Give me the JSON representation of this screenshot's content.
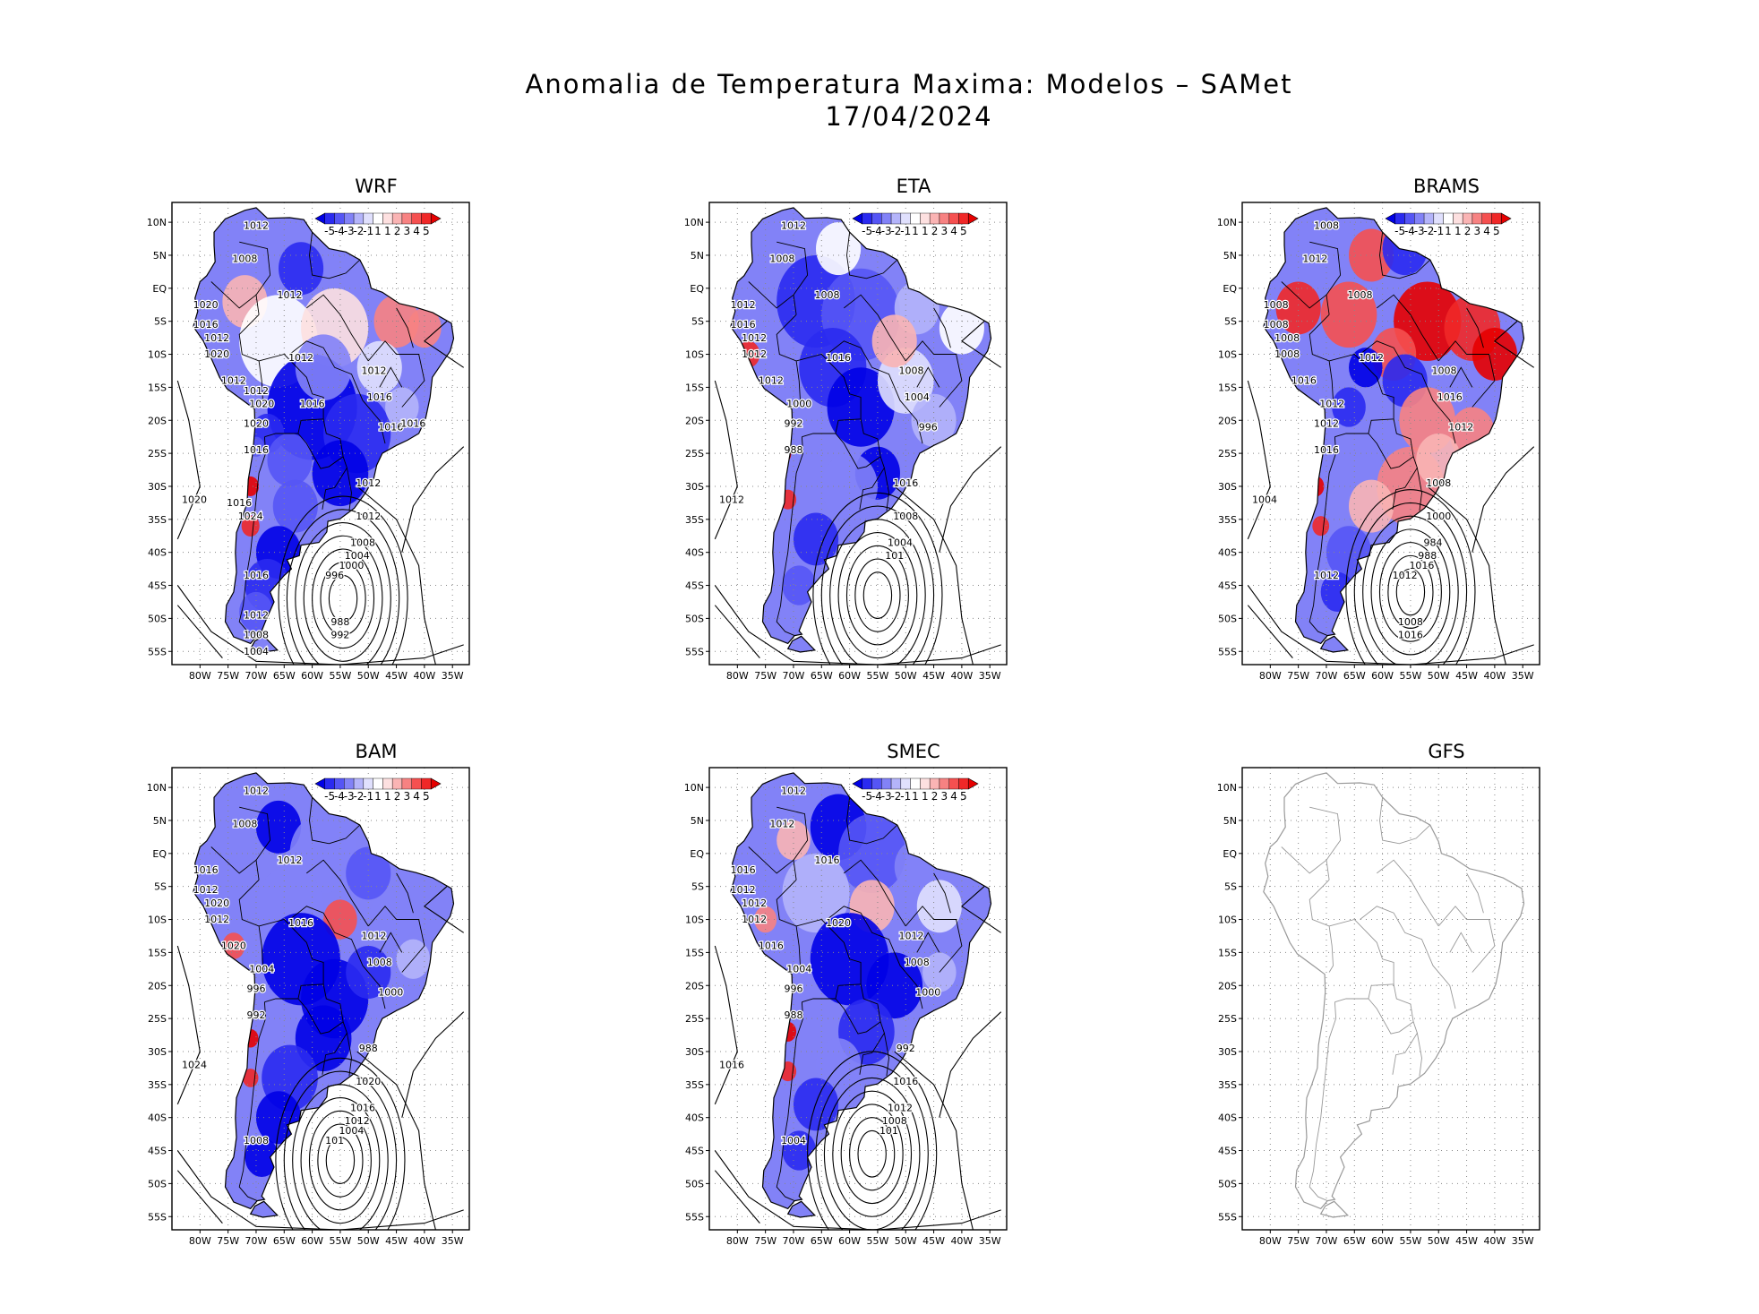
{
  "figure": {
    "title_line1": "Anomalia de Temperatura Maxima: Modelos – SAMet",
    "title_line2": "17/04/2024"
  },
  "axes": {
    "lat_labels": [
      "10N",
      "5N",
      "EQ",
      "5S",
      "10S",
      "15S",
      "20S",
      "25S",
      "30S",
      "35S",
      "40S",
      "45S",
      "50S",
      "55S"
    ],
    "lon_labels": [
      "80W",
      "75W",
      "70W",
      "65W",
      "60W",
      "55W",
      "50W",
      "45W",
      "40W",
      "35W"
    ]
  },
  "colorbar": {
    "labels": [
      "-5",
      "-4",
      "-3",
      "-2",
      "-1",
      "1",
      "1",
      "2",
      "3",
      "4",
      "5"
    ],
    "colors": [
      "#0000e6",
      "#2a2af0",
      "#5555f5",
      "#8282f7",
      "#b4b4fa",
      "#e0e0fd",
      "#ffffff",
      "#fde0e0",
      "#fab4b4",
      "#f78282",
      "#f55050",
      "#f02828",
      "#e60000"
    ]
  },
  "panels": [
    {
      "id": "wrf",
      "title": "WRF",
      "has_data": true,
      "contour_labels": [
        "1012",
        "1008",
        "1012",
        "1020",
        "1016",
        "1012",
        "1020",
        "1012",
        "1012",
        "1012",
        "1016",
        "1020",
        "1016",
        "1020",
        "1016",
        "1012",
        "1020",
        "1012",
        "1008",
        "1004",
        "1016",
        "1000",
        "996",
        "988",
        "992",
        "1016",
        "1012",
        "1008",
        "1004",
        "1024",
        "1012",
        "1016",
        "1016"
      ]
    },
    {
      "id": "eta",
      "title": "ETA",
      "has_data": true,
      "contour_labels": [
        "1012",
        "1008",
        "1008",
        "1012",
        "1016",
        "1012",
        "1012",
        "1012",
        "1016",
        "1008",
        "1004",
        "1000",
        "996",
        "992",
        "988",
        "1016",
        "1012",
        "1008",
        "1004",
        "101"
      ]
    },
    {
      "id": "brams",
      "title": "BRAMS",
      "has_data": true,
      "contour_labels": [
        "1008",
        "1012",
        "1008",
        "1008",
        "1008",
        "1008",
        "1008",
        "1016",
        "1012",
        "1008",
        "1016",
        "1012",
        "1012",
        "1012",
        "1016",
        "1008",
        "1004",
        "1000",
        "984",
        "988",
        "1012",
        "1016",
        "1012",
        "1008",
        "1016"
      ]
    },
    {
      "id": "bam",
      "title": "BAM",
      "has_data": true,
      "contour_labels": [
        "1012",
        "1008",
        "1012",
        "1016",
        "1012",
        "1020",
        "1012",
        "1020",
        "1016",
        "1012",
        "1008",
        "1004",
        "1000",
        "996",
        "992",
        "988",
        "1024",
        "1020",
        "1016",
        "1012",
        "1008",
        "1004",
        "101"
      ]
    },
    {
      "id": "smec",
      "title": "SMEC",
      "has_data": true,
      "contour_labels": [
        "1012",
        "1012",
        "1016",
        "1016",
        "1012",
        "1012",
        "1012",
        "1016",
        "1020",
        "1012",
        "1008",
        "1004",
        "1000",
        "996",
        "988",
        "992",
        "1016",
        "1016",
        "1012",
        "1008",
        "1004",
        "101"
      ]
    },
    {
      "id": "gfs",
      "title": "GFS",
      "has_data": false,
      "contour_labels": []
    }
  ],
  "colors": {
    "frame": "#000000",
    "coast_data": "#000000",
    "coast_empty": "#999999",
    "grid": "#888888",
    "isobar": "#000000"
  }
}
